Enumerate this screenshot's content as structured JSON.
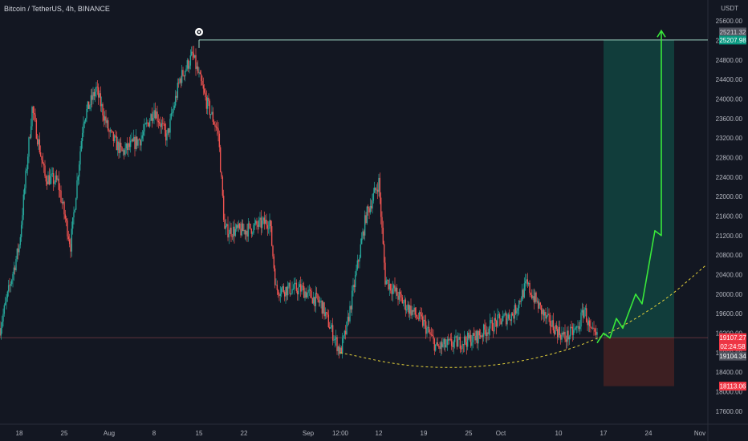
{
  "header": {
    "symbol_title": "Bitcoin / TetherUS, 4h, BINANCE",
    "currency": "USDT"
  },
  "colors": {
    "background": "#131722",
    "up_candle": "#26a69a",
    "down_candle": "#ef5350",
    "projection_arrow": "#39e83a",
    "dashed_curve": "#e5d23a",
    "target_zone": "#113d3b",
    "stop_zone": "#3d1f22",
    "resistance_line": "#9fd4c2"
  },
  "icons": {
    "drawing_marker": "eye-target-icon"
  },
  "chart_data": {
    "type": "candlestick",
    "title": "Bitcoin / TetherUS, 4h, BINANCE",
    "y_axis": {
      "unit": "USDT",
      "ylim": [
        17400,
        25700
      ],
      "ticks": [
        17600,
        18000,
        18400,
        18800,
        19200,
        19600,
        20000,
        20400,
        20800,
        21200,
        21600,
        22000,
        22400,
        22800,
        23200,
        23600,
        24000,
        24400,
        24800,
        25200,
        25600
      ],
      "tick_labels": [
        "17600.00",
        "18000.00",
        "18400.00",
        "18800.00",
        "19200.00",
        "19600.00",
        "20000.00",
        "20400.00",
        "20800.00",
        "21200.00",
        "21600.00",
        "22000.00",
        "22400.00",
        "22800.00",
        "23200.00",
        "23600.00",
        "24000.00",
        "24400.00",
        "24800.00",
        "25200.00",
        "25600.00"
      ]
    },
    "x_axis": {
      "start": "2022-07-15",
      "end": "2022-11-02",
      "tick_labels": [
        {
          "date": "2022-07-18",
          "label": "18"
        },
        {
          "date": "2022-07-25",
          "label": "25"
        },
        {
          "date": "2022-08-01",
          "label": "Aug"
        },
        {
          "date": "2022-08-08",
          "label": "8"
        },
        {
          "date": "2022-08-15",
          "label": "15"
        },
        {
          "date": "2022-08-22",
          "label": "22"
        },
        {
          "date": "2022-09-01",
          "label": "Sep"
        },
        {
          "date": "2022-09-06",
          "label": "12:00"
        },
        {
          "date": "2022-09-12",
          "label": "12"
        },
        {
          "date": "2022-09-19",
          "label": "19"
        },
        {
          "date": "2022-09-26",
          "label": "25"
        },
        {
          "date": "2022-10-01",
          "label": "Oct"
        },
        {
          "date": "2022-10-10",
          "label": "10"
        },
        {
          "date": "2022-10-17",
          "label": "17"
        },
        {
          "date": "2022-10-24",
          "label": "24"
        },
        {
          "date": "2022-11-01",
          "label": "Nov"
        }
      ]
    },
    "price_path": [
      {
        "date": "2022-07-15",
        "close": 19300
      },
      {
        "date": "2022-07-18",
        "close": 21000
      },
      {
        "date": "2022-07-20",
        "close": 23800
      },
      {
        "date": "2022-07-22",
        "close": 22400
      },
      {
        "date": "2022-07-24",
        "close": 22300
      },
      {
        "date": "2022-07-26",
        "close": 21000
      },
      {
        "date": "2022-07-28",
        "close": 23600
      },
      {
        "date": "2022-07-30",
        "close": 24200
      },
      {
        "date": "2022-08-01",
        "close": 23300
      },
      {
        "date": "2022-08-03",
        "close": 22900
      },
      {
        "date": "2022-08-06",
        "close": 23200
      },
      {
        "date": "2022-08-08",
        "close": 23800
      },
      {
        "date": "2022-08-10",
        "close": 23200
      },
      {
        "date": "2022-08-12",
        "close": 24400
      },
      {
        "date": "2022-08-14",
        "close": 24900
      },
      {
        "date": "2022-08-16",
        "close": 24000
      },
      {
        "date": "2022-08-18",
        "close": 23300
      },
      {
        "date": "2022-08-19",
        "close": 21300
      },
      {
        "date": "2022-08-22",
        "close": 21300
      },
      {
        "date": "2022-08-26",
        "close": 21500
      },
      {
        "date": "2022-08-27",
        "close": 20100
      },
      {
        "date": "2022-08-31",
        "close": 20100
      },
      {
        "date": "2022-09-03",
        "close": 19800
      },
      {
        "date": "2022-09-06",
        "close": 18800
      },
      {
        "date": "2022-09-07",
        "close": 19300
      },
      {
        "date": "2022-09-10",
        "close": 21600
      },
      {
        "date": "2022-09-12",
        "close": 22300
      },
      {
        "date": "2022-09-13",
        "close": 20300
      },
      {
        "date": "2022-09-16",
        "close": 19800
      },
      {
        "date": "2022-09-19",
        "close": 19400
      },
      {
        "date": "2022-09-21",
        "close": 18900
      },
      {
        "date": "2022-09-24",
        "close": 19000
      },
      {
        "date": "2022-09-27",
        "close": 19100
      },
      {
        "date": "2022-09-30",
        "close": 19400
      },
      {
        "date": "2022-10-03",
        "close": 19600
      },
      {
        "date": "2022-10-05",
        "close": 20200
      },
      {
        "date": "2022-10-08",
        "close": 19500
      },
      {
        "date": "2022-10-11",
        "close": 19100
      },
      {
        "date": "2022-10-13",
        "close": 19300
      },
      {
        "date": "2022-10-14",
        "close": 19700
      },
      {
        "date": "2022-10-15",
        "close": 19200
      },
      {
        "date": "2022-10-16",
        "close": 19100
      }
    ],
    "projection_arrow": [
      {
        "date": "2022-10-16",
        "price": 19000
      },
      {
        "date": "2022-10-17",
        "price": 19200
      },
      {
        "date": "2022-10-18",
        "price": 19100
      },
      {
        "date": "2022-10-19",
        "price": 19500
      },
      {
        "date": "2022-10-20",
        "price": 19300
      },
      {
        "date": "2022-10-22",
        "price": 20000
      },
      {
        "date": "2022-10-23",
        "price": 19800
      },
      {
        "date": "2022-10-25",
        "price": 21300
      },
      {
        "date": "2022-10-26",
        "price": 21200
      },
      {
        "date": "2022-10-26",
        "price": 25400
      }
    ],
    "rounding_bottom_curve": [
      {
        "date": "2022-09-06",
        "price": 18800
      },
      {
        "date": "2022-09-16",
        "price": 18520
      },
      {
        "date": "2022-09-26",
        "price": 18480
      },
      {
        "date": "2022-10-06",
        "price": 18650
      },
      {
        "date": "2022-10-16",
        "price": 19050
      },
      {
        "date": "2022-10-26",
        "price": 19800
      },
      {
        "date": "2022-11-02",
        "price": 20600
      }
    ],
    "resistance_line": {
      "price": 25207.98,
      "start": "2022-08-15",
      "end": "2022-11-02"
    },
    "position": {
      "entry_price": 19107.27,
      "target_price": 25207.98,
      "stop_price": 18113.06,
      "start": "2022-10-17",
      "end": "2022-10-28"
    },
    "current_price_line": 19107.27,
    "price_labels": {
      "target_grey": "25211.32",
      "target": "25207.98",
      "last_price": "19107.27",
      "countdown": "02:24:58",
      "second_price": "19104.34",
      "stop": "18113.06"
    }
  }
}
